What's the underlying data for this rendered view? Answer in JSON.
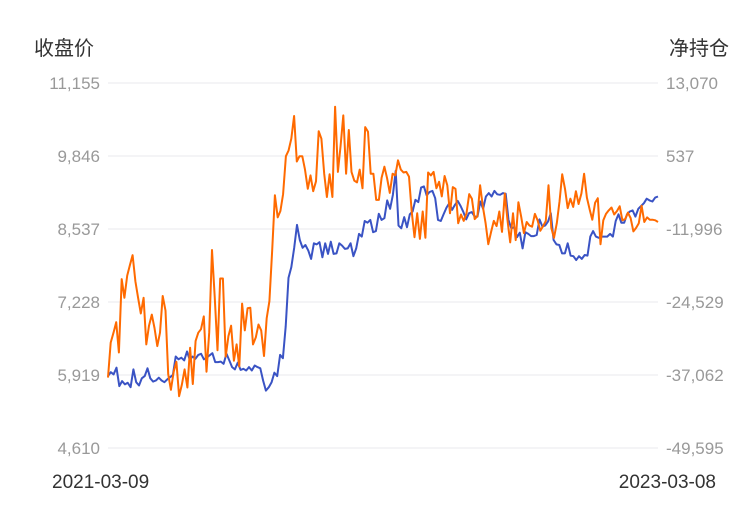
{
  "chart_data": {
    "type": "line",
    "title": "",
    "left_axis": {
      "label": "收盘价",
      "ticks": [
        "11,155",
        "9,846",
        "8,537",
        "7,228",
        "5,919",
        "4,610"
      ],
      "range": [
        4610,
        11155
      ]
    },
    "right_axis": {
      "label": "净持仓",
      "ticks": [
        "13,070",
        "537",
        "-11,996",
        "-24,529",
        "-37,062",
        "-49,595"
      ],
      "range": [
        -49595,
        13070
      ]
    },
    "x_start": "2021-03-09",
    "x_end": "2023-03-08",
    "grid": true,
    "colors": {
      "close_price": "#3a53c4",
      "net_position": "#ff6a00"
    },
    "series": [
      {
        "axis": "left",
        "color": "#3a53c4",
        "values": [
          5900,
          5970,
          5930,
          6050,
          5720,
          5810,
          5750,
          5780,
          5700,
          6020,
          5790,
          5730,
          5860,
          5900,
          6040,
          5860,
          5800,
          5820,
          5870,
          5820,
          5790,
          5840,
          5880,
          5920,
          6250,
          6200,
          6230,
          6180,
          6340,
          6190,
          6250,
          6210,
          6280,
          6300,
          6200,
          6230,
          6270,
          6310,
          6150,
          6150,
          6160,
          6120,
          6300,
          6180,
          6060,
          6020,
          6140,
          6010,
          6030,
          6000,
          6060,
          6000,
          6090,
          6060,
          6040,
          5820,
          5640,
          5700,
          5790,
          5960,
          5900,
          6280,
          6220,
          6790,
          7660,
          7850,
          8200,
          8610,
          8340,
          8200,
          8250,
          8150,
          8000,
          8280,
          8260,
          8300,
          8030,
          8280,
          8090,
          8310,
          8090,
          8100,
          8280,
          8240,
          8180,
          8190,
          8280,
          8050,
          8190,
          8450,
          8400,
          8680,
          8650,
          8700,
          8480,
          8500,
          8810,
          8700,
          8730,
          9050,
          8900,
          9150,
          9580,
          8600,
          8550,
          8750,
          8570,
          8800,
          8850,
          9060,
          9020,
          9280,
          9300,
          9140,
          9200,
          9220,
          9090,
          8700,
          8680,
          8800,
          8920,
          9000,
          8880,
          8970,
          9040,
          8950,
          8840,
          8710,
          8820,
          8840,
          8760,
          8760,
          9030,
          8900,
          9120,
          9180,
          9120,
          9220,
          9160,
          9150,
          9180,
          9170,
          8700,
          8550,
          8570,
          8390,
          8470,
          8190,
          8480,
          8450,
          8410,
          8410,
          8430,
          8710,
          8580,
          8600,
          8670,
          8820,
          8340,
          8260,
          8250,
          8100,
          8100,
          8280,
          8060,
          8050,
          7980,
          8050,
          8000,
          8070,
          8060,
          8400,
          8500,
          8400,
          8380,
          8400,
          8400,
          8400,
          8450,
          8400,
          8680,
          8800,
          8650,
          8650,
          8800,
          8850,
          8870,
          8760,
          8900,
          8950,
          9000,
          9080,
          9050,
          9030,
          9100,
          9120
        ]
      },
      {
        "axis": "right",
        "color": "#ff6a00",
        "values": [
          -37500,
          -31500,
          -29800,
          -28000,
          -33200,
          -20600,
          -23800,
          -20000,
          -18200,
          -16500,
          -21000,
          -23800,
          -26500,
          -23800,
          -31800,
          -28600,
          -26700,
          -29000,
          -32100,
          -29800,
          -23500,
          -26000,
          -36900,
          -39600,
          -36500,
          -34800,
          -40700,
          -38700,
          -36100,
          -39200,
          -32400,
          -38600,
          -31200,
          -29800,
          -29200,
          -27000,
          -36500,
          -29800,
          -15600,
          -23600,
          -32800,
          -20500,
          -20500,
          -33900,
          -30400,
          -28600,
          -34600,
          -31800,
          -35600,
          -24800,
          -29400,
          -25600,
          -25500,
          -31800,
          -30600,
          -28400,
          -29400,
          -33800,
          -27300,
          -24400,
          -15600,
          -6200,
          -10000,
          -8900,
          -6000,
          500,
          1500,
          3500,
          7400,
          -400,
          500,
          500,
          -1800,
          -5100,
          -2800,
          -5500,
          -3800,
          4800,
          3500,
          -2500,
          -6500,
          -2600,
          -6500,
          9000,
          -2200,
          2300,
          7500,
          -2500,
          5000,
          -2200,
          -3700,
          -4000,
          -1800,
          -5000,
          5500,
          4700,
          -2500,
          -2500,
          -7000,
          -7000,
          -3200,
          -1300,
          -3300,
          -5800,
          -2500,
          -2800,
          -200,
          -1800,
          -2300,
          -2200,
          -3000,
          -9000,
          -13400,
          -9300,
          -13700,
          -9000,
          -13500,
          -2300,
          -2800,
          -2200,
          -5000,
          -3900,
          -6400,
          -2900,
          -4500,
          -9300,
          -4800,
          -5100,
          -11000,
          -9500,
          -10600,
          -9300,
          -6000,
          -6800,
          -10300,
          -9800,
          -4500,
          -8200,
          -11000,
          -14600,
          -12500,
          -10600,
          -11500,
          -9000,
          -12500,
          -5900,
          -10500,
          -14300,
          -9300,
          -13900,
          -7400,
          -9900,
          -12700,
          -10800,
          -11400,
          -11600,
          -9400,
          -10500,
          -12300,
          -11500,
          -10600,
          -4500,
          -11800,
          -13500,
          -11000,
          -7300,
          -2600,
          -5100,
          -8400,
          -6800,
          -8200,
          -5500,
          -7700,
          -5900,
          -2500,
          -6600,
          -8600,
          -10400,
          -7500,
          -6700,
          -14600,
          -10500,
          -9400,
          -8800,
          -8300,
          -9500,
          -8900,
          -8100,
          -10500,
          -10300,
          -9200,
          -10100,
          -12400,
          -11800,
          -11000,
          -8000,
          -10800,
          -10000,
          -10400,
          -10400,
          -10500,
          -10800
        ]
      }
    ]
  }
}
